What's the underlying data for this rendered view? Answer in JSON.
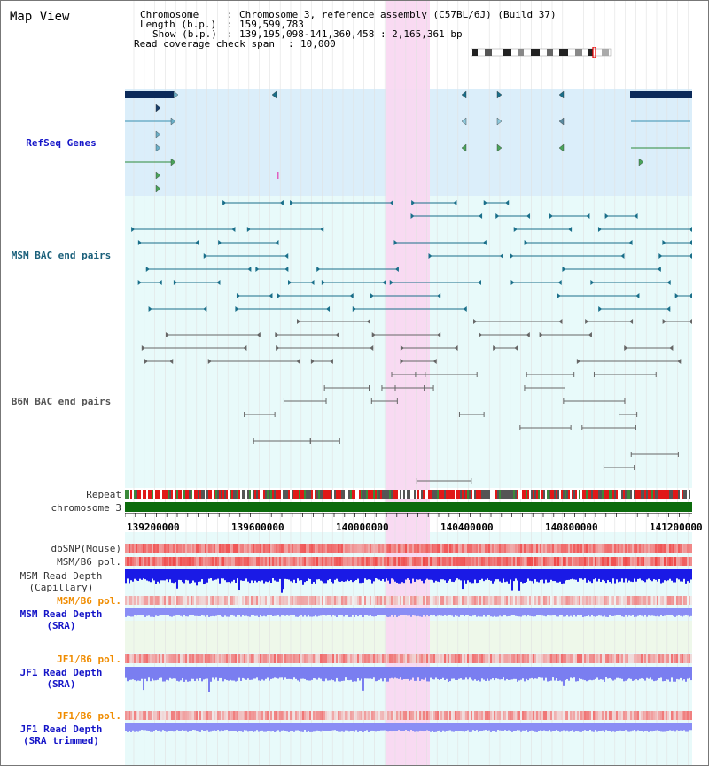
{
  "page": {
    "title": "Map View"
  },
  "header": {
    "chromosome_label": "Chromosome",
    "chromosome_value": "Chromosome 3, reference assembly (C57BL/6J) (Build 37)",
    "length_label": "Length (b.p.)",
    "length_value": "159,599,783",
    "show_label": "Show (b.p.)",
    "show_value": "139,195,098-141,360,458 : 2,165,361 bp",
    "span_label": "Read coverage check span",
    "span_value": "10,000"
  },
  "tracks": {
    "refseq": "RefSeq Genes",
    "msm_bac": "MSM BAC end pairs",
    "b6n_bac": "B6N BAC end pairs",
    "repeat": "Repeat",
    "chromosome": "chromosome 3",
    "dbsnp": "dbSNP(Mouse)",
    "msm_b6_pol": "MSM/B6 pol.",
    "msm_depth_cap_1": "MSM Read Depth",
    "msm_depth_cap_2": "(Capillary)",
    "msm_b6_pol2": "MSM/B6 pol.",
    "msm_depth_sra_1": "MSM Read Depth",
    "msm_depth_sra_2": "(SRA)",
    "jf1_b6_pol": "JF1/B6 pol.",
    "jf1_depth_sra_1": "JF1 Read Depth",
    "jf1_depth_sra_2": "(SRA)",
    "jf1_b6_pol2": "JF1/B6 pol.",
    "jf1_depth_trim_1": "JF1 Read Depth",
    "jf1_depth_trim_2": "(SRA trimmed)"
  },
  "axis": {
    "ticks": [
      "139200000",
      "139600000",
      "140000000",
      "140400000",
      "140800000",
      "141200000"
    ]
  },
  "colors": {
    "highlight": "#f9d8f1",
    "refseq_bg": "#dbeefa",
    "bac_bg": "#e8fafa",
    "msm_feature": "#1a6f8a",
    "b6n_feature": "#555555",
    "chrom_green": "#0c6b0c",
    "depth_blue": "#1a1ae6",
    "depth_light": "#7a7ef0"
  }
}
